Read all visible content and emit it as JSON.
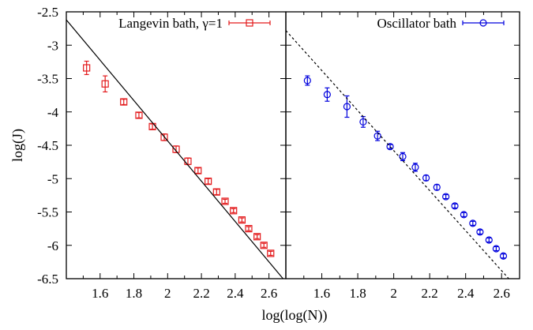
{
  "chart_data": [
    {
      "type": "scatter",
      "panel": "left",
      "xlabel": "log(log(N))",
      "ylabel": "log(J)",
      "xlim": [
        1.4,
        2.7
      ],
      "ylim": [
        -6.5,
        -2.5
      ],
      "yticks": [
        -2.5,
        -3,
        -3.5,
        -4,
        -4.5,
        -5,
        -5.5,
        -6,
        -6.5
      ],
      "ytick_labels": [
        "-2.5",
        "-3",
        "-3.5",
        "-4",
        "-4.5",
        "-5",
        "-5.5",
        "-6",
        "-6.5"
      ],
      "xticks": [
        1.6,
        1.8,
        2.0,
        2.2,
        2.4,
        2.6
      ],
      "xtick_labels": [
        "1.6",
        "1.8",
        "2",
        "2.2",
        "2.4",
        "2.6"
      ],
      "legend": {
        "label": "Langevin bath, γ=1",
        "position": "top-right"
      },
      "series": [
        {
          "name": "Langevin bath, γ=1",
          "color": "#e31a1c",
          "marker": "square",
          "x": [
            1.52,
            1.63,
            1.74,
            1.83,
            1.91,
            1.98,
            2.05,
            2.12,
            2.18,
            2.24,
            2.29,
            2.34,
            2.39,
            2.44,
            2.48,
            2.53,
            2.57,
            2.61
          ],
          "y": [
            -3.34,
            -3.58,
            -3.85,
            -4.05,
            -4.22,
            -4.38,
            -4.56,
            -4.74,
            -4.88,
            -5.04,
            -5.2,
            -5.34,
            -5.48,
            -5.62,
            -5.75,
            -5.87,
            -6.0,
            -6.12
          ],
          "yerr": [
            0.1,
            0.12,
            0.04,
            0.04,
            0.04,
            0.05,
            0.05,
            0.05,
            0.04,
            0.04,
            0.04,
            0.03,
            0.03,
            0.03,
            0.03,
            0.03,
            0.03,
            0.03
          ]
        },
        {
          "style": "solid-line",
          "color": "#000000",
          "x": [
            1.4,
            2.7
          ],
          "y": [
            -2.62,
            -6.55
          ]
        }
      ]
    },
    {
      "type": "scatter",
      "panel": "right",
      "xlabel": "log(log(N))",
      "xlim": [
        1.4,
        2.7
      ],
      "ylim": [
        -6.5,
        -2.5
      ],
      "xticks": [
        1.6,
        1.8,
        2.0,
        2.2,
        2.4,
        2.6
      ],
      "xtick_labels": [
        "1.6",
        "1.8",
        "2",
        "2.2",
        "2.4",
        "2.6"
      ],
      "legend": {
        "label": "Oscillator bath",
        "position": "top-right"
      },
      "series": [
        {
          "name": "Oscillator bath",
          "color": "#0000dd",
          "marker": "circle",
          "x": [
            1.52,
            1.63,
            1.74,
            1.83,
            1.91,
            1.98,
            2.05,
            2.12,
            2.18,
            2.24,
            2.29,
            2.34,
            2.39,
            2.44,
            2.48,
            2.53,
            2.57,
            2.61
          ],
          "y": [
            -3.53,
            -3.74,
            -3.92,
            -4.15,
            -4.36,
            -4.52,
            -4.67,
            -4.83,
            -4.99,
            -5.13,
            -5.27,
            -5.41,
            -5.54,
            -5.67,
            -5.8,
            -5.92,
            -6.05,
            -6.16
          ],
          "yerr": [
            0.07,
            0.1,
            0.16,
            0.08,
            0.07,
            0.03,
            0.06,
            0.06,
            0.04,
            0.04,
            0.03,
            0.03,
            0.03,
            0.03,
            0.03,
            0.03,
            0.03,
            0.03
          ]
        },
        {
          "style": "dashed-line",
          "color": "#000000",
          "x": [
            1.4,
            2.7
          ],
          "y": [
            -2.78,
            -6.68
          ]
        }
      ]
    }
  ]
}
